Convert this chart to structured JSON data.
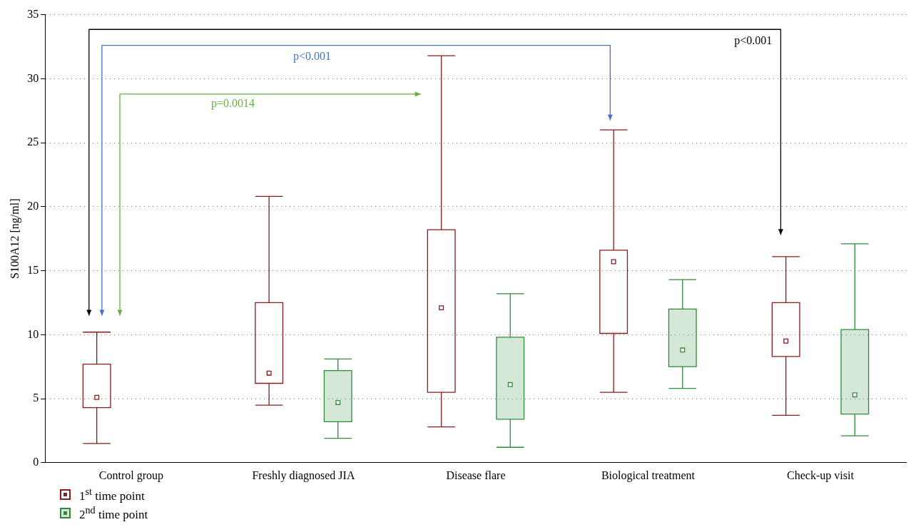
{
  "chart_data": {
    "type": "box",
    "ylabel": "S100A12 [ng/ml]",
    "categories": [
      "Control group",
      "Freshly diagnosed JIA",
      "Disease flare",
      "Biological treatment",
      "Check-up visit"
    ],
    "series": [
      {
        "name": "1$^{st}$ time point",
        "color": "#8b1a1a",
        "boxes": [
          {
            "low": 1.5,
            "q1": 4.3,
            "median": 5.1,
            "q3": 7.7,
            "high": 10.2
          },
          {
            "low": 4.5,
            "q1": 6.2,
            "median": 7.0,
            "q3": 12.5,
            "high": 20.8
          },
          {
            "low": 2.8,
            "q1": 5.5,
            "median": 12.1,
            "q3": 18.2,
            "high": 31.8
          },
          {
            "low": 5.5,
            "q1": 10.1,
            "median": 15.7,
            "q3": 16.6,
            "high": 26.0
          },
          {
            "low": 3.7,
            "q1": 8.3,
            "median": 9.5,
            "q3": 12.5,
            "high": 16.1
          }
        ]
      },
      {
        "name": "2$^{nd}$ time point",
        "color": "#2e8b3a",
        "boxes": [
          null,
          {
            "low": 1.9,
            "q1": 3.2,
            "median": 4.7,
            "q3": 7.2,
            "high": 8.1
          },
          {
            "low": 1.2,
            "q1": 3.4,
            "median": 6.1,
            "q3": 9.8,
            "high": 13.2
          },
          {
            "low": 5.8,
            "q1": 7.5,
            "median": 8.8,
            "q3": 12.0,
            "high": 14.3
          },
          {
            "low": 2.1,
            "q1": 3.8,
            "median": 5.3,
            "q3": 10.4,
            "high": 17.1
          }
        ]
      }
    ],
    "ylim": [
      0,
      35
    ],
    "yticks": [
      0,
      5,
      10,
      15,
      20,
      25,
      30,
      35
    ],
    "grid": "y",
    "legend": "bottom left",
    "marker": "square",
    "annotations": [
      "p<0.001",
      "p<0.001",
      "p=0.0014"
    ]
  }
}
